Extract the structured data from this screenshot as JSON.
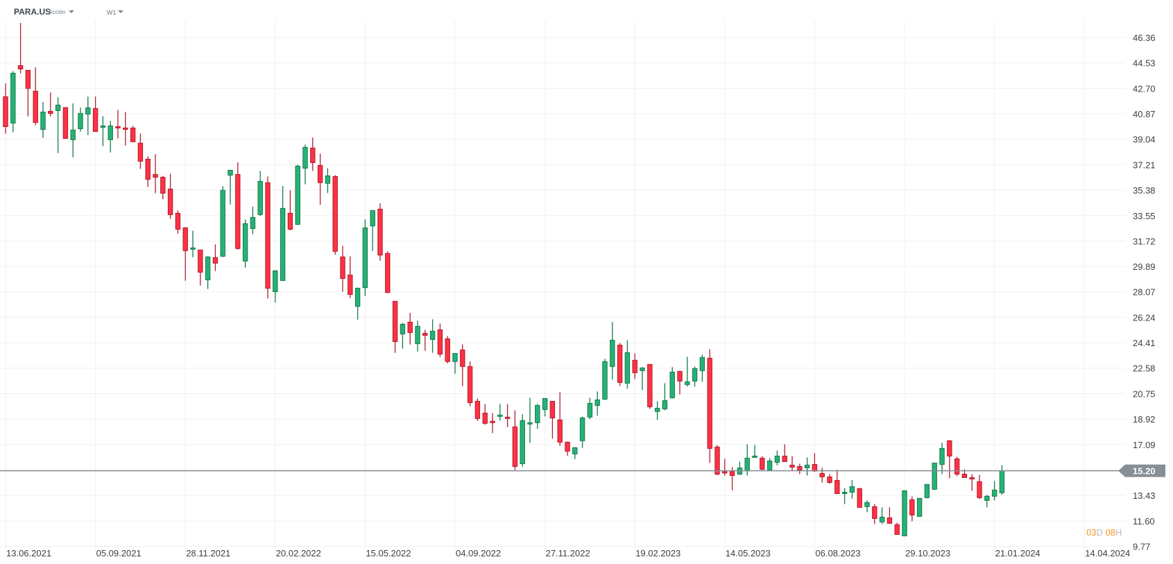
{
  "header": {
    "symbol": "PARA.US",
    "instrument_type": "Acción",
    "timeframe": "W1"
  },
  "current_price": {
    "value": 15.2,
    "label": "15.20",
    "color": "#868e96"
  },
  "countdown": {
    "days": "03",
    "days_unit": "D",
    "hours": "08",
    "hours_unit": "H"
  },
  "colors": {
    "up_fill": "#26b276",
    "up_border": "#157a4c",
    "down_fill": "#ff3145",
    "down_border": "#b01d2c",
    "grid": "#f0f0f0"
  },
  "chart_data": {
    "type": "candlestick",
    "title": "PARA.US W1",
    "ylim": [
      9.77,
      46.36
    ],
    "grid": true,
    "y_tick_labels": [
      "46.36",
      "44.53",
      "42.70",
      "40.87",
      "39.04",
      "37.21",
      "35.38",
      "33.55",
      "31.72",
      "29.89",
      "28.07",
      "26.24",
      "24.41",
      "22.58",
      "20.75",
      "18.92",
      "17.09",
      "13.43",
      "11.60",
      "9.77"
    ],
    "x_tick_labels": [
      "13.06.2021",
      "05.09.2021",
      "28.11.2021",
      "20.02.2022",
      "15.05.2022",
      "04.09.2022",
      "27.11.2022",
      "19.02.2023",
      "14.05.2023",
      "06.08.2023",
      "29.10.2023",
      "21.01.2024",
      "14.04.2024"
    ],
    "candle_fields": [
      "open",
      "high",
      "low",
      "close"
    ],
    "candles": [
      [
        42.1,
        43.06,
        39.44,
        39.95
      ],
      [
        40.2,
        43.94,
        39.54,
        43.79
      ],
      [
        44.34,
        47.4,
        43.78,
        44.09
      ],
      [
        44.0,
        44.0,
        40.68,
        42.7
      ],
      [
        42.5,
        44.21,
        40.04,
        40.25
      ],
      [
        39.74,
        41.72,
        39.14,
        41.0
      ],
      [
        41.05,
        42.41,
        40.68,
        40.9
      ],
      [
        41.1,
        42.06,
        38.04,
        41.5
      ],
      [
        41.32,
        41.32,
        39.1,
        39.1
      ],
      [
        39.01,
        41.62,
        37.74,
        39.7
      ],
      [
        39.8,
        41.32,
        39.59,
        40.9
      ],
      [
        40.85,
        42.11,
        39.34,
        41.3
      ],
      [
        41.25,
        42.11,
        39.6,
        39.6
      ],
      [
        39.9,
        40.7,
        38.54,
        40.0
      ],
      [
        39.01,
        40.35,
        38.09,
        40.0
      ],
      [
        39.95,
        41.15,
        39.1,
        39.85
      ],
      [
        39.85,
        41.0,
        38.59,
        39.75
      ],
      [
        39.85,
        40.0,
        38.86,
        38.86
      ],
      [
        38.76,
        39.45,
        36.91,
        37.46
      ],
      [
        37.61,
        37.81,
        35.61,
        36.16
      ],
      [
        36.51,
        37.96,
        35.16,
        36.31
      ],
      [
        36.31,
        36.41,
        34.72,
        35.16
      ],
      [
        35.46,
        36.56,
        33.32,
        33.62
      ],
      [
        33.72,
        33.92,
        32.26,
        32.57
      ],
      [
        32.67,
        32.72,
        28.87,
        31.03
      ],
      [
        31.13,
        32.47,
        30.56,
        31.23
      ],
      [
        31.08,
        31.08,
        28.52,
        29.48
      ],
      [
        28.93,
        30.63,
        28.27,
        30.58
      ],
      [
        30.53,
        31.48,
        29.56,
        30.13
      ],
      [
        30.63,
        35.67,
        30.56,
        35.37
      ],
      [
        36.46,
        36.81,
        34.35,
        36.81
      ],
      [
        36.51,
        37.38,
        31.11,
        31.18
      ],
      [
        30.28,
        33.27,
        29.81,
        32.97
      ],
      [
        32.62,
        34.19,
        32.22,
        33.42
      ],
      [
        33.62,
        36.76,
        33.52,
        36.01
      ],
      [
        35.92,
        36.36,
        27.6,
        28.33
      ],
      [
        28.08,
        29.63,
        27.3,
        29.58
      ],
      [
        28.88,
        35.67,
        28.88,
        34.07
      ],
      [
        33.72,
        35.37,
        32.49,
        32.57
      ],
      [
        32.92,
        37.21,
        32.87,
        37.11
      ],
      [
        36.96,
        38.66,
        35.8,
        38.46
      ],
      [
        38.41,
        39.16,
        36.76,
        37.36
      ],
      [
        37.16,
        38.01,
        34.32,
        35.92
      ],
      [
        35.87,
        36.96,
        35.17,
        36.41
      ],
      [
        36.36,
        36.46,
        30.73,
        30.98
      ],
      [
        30.58,
        31.38,
        28.08,
        29.03
      ],
      [
        29.28,
        30.63,
        27.62,
        27.88
      ],
      [
        27.02,
        28.38,
        26.07,
        28.33
      ],
      [
        28.37,
        33.29,
        27.77,
        32.67
      ],
      [
        32.81,
        33.92,
        31.01,
        33.92
      ],
      [
        34.02,
        34.43,
        30.31,
        30.71
      ],
      [
        30.83,
        30.98,
        27.97,
        28.02
      ],
      [
        27.39,
        27.39,
        23.68,
        24.49
      ],
      [
        25.04,
        25.84,
        23.98,
        25.74
      ],
      [
        25.89,
        26.55,
        24.28,
        25.14
      ],
      [
        24.34,
        25.99,
        23.78,
        25.59
      ],
      [
        25.09,
        25.34,
        23.83,
        24.94
      ],
      [
        24.64,
        26.09,
        23.68,
        25.24
      ],
      [
        25.34,
        25.79,
        23.38,
        23.59
      ],
      [
        24.69,
        24.89,
        22.93,
        23.06
      ],
      [
        23.06,
        23.64,
        22.18,
        23.64
      ],
      [
        23.89,
        24.29,
        21.28,
        22.7
      ],
      [
        22.7,
        23.06,
        19.84,
        20.1
      ],
      [
        20.2,
        20.4,
        18.79,
        18.96
      ],
      [
        19.35,
        20.0,
        18.51,
        18.61
      ],
      [
        18.76,
        19.35,
        17.91,
        18.66
      ],
      [
        19.11,
        20.0,
        18.81,
        19.21
      ],
      [
        19.06,
        20.0,
        18.34,
        18.96
      ],
      [
        18.36,
        19.55,
        15.26,
        15.51
      ],
      [
        15.71,
        19.26,
        15.49,
        18.81
      ],
      [
        18.56,
        20.45,
        17.21,
        18.66
      ],
      [
        18.66,
        20.0,
        18.21,
        19.9
      ],
      [
        19.6,
        20.4,
        19.11,
        20.4
      ],
      [
        20.2,
        20.2,
        17.51,
        19.0
      ],
      [
        18.86,
        20.85,
        16.99,
        17.26
      ],
      [
        17.26,
        17.3,
        16.29,
        16.61
      ],
      [
        16.41,
        16.91,
        16.04,
        16.86
      ],
      [
        17.36,
        19.1,
        16.84,
        19.0
      ],
      [
        19.06,
        20.45,
        18.91,
        20.05
      ],
      [
        19.9,
        20.9,
        19.16,
        20.3
      ],
      [
        20.35,
        23.25,
        20.3,
        23.05
      ],
      [
        22.7,
        25.91,
        21.75,
        24.59
      ],
      [
        24.24,
        24.39,
        21.3,
        21.55
      ],
      [
        21.5,
        24.59,
        21.1,
        23.69
      ],
      [
        23.15,
        23.64,
        21.8,
        22.25
      ],
      [
        22.4,
        22.65,
        21.0,
        22.6
      ],
      [
        22.85,
        22.85,
        19.65,
        19.8
      ],
      [
        19.46,
        20.2,
        18.86,
        19.7
      ],
      [
        19.65,
        21.5,
        19.55,
        20.25
      ],
      [
        20.45,
        22.65,
        20.4,
        22.3
      ],
      [
        22.35,
        22.4,
        20.69,
        21.65
      ],
      [
        21.4,
        23.4,
        21.25,
        21.6
      ],
      [
        21.65,
        22.7,
        21.25,
        22.55
      ],
      [
        22.4,
        23.55,
        21.6,
        23.35
      ],
      [
        23.3,
        23.94,
        15.76,
        16.81
      ],
      [
        16.91,
        17.06,
        14.88,
        14.96
      ],
      [
        15.13,
        16.06,
        14.85,
        15.04
      ],
      [
        15.13,
        15.46,
        13.8,
        14.86
      ],
      [
        14.96,
        15.86,
        14.91,
        15.41
      ],
      [
        15.19,
        17.11,
        14.86,
        16.11
      ],
      [
        16.16,
        17.06,
        16.16,
        16.26
      ],
      [
        16.11,
        16.26,
        15.24,
        15.31
      ],
      [
        15.26,
        16.11,
        15.26,
        15.91
      ],
      [
        15.81,
        16.66,
        15.59,
        16.26
      ],
      [
        16.26,
        17.11,
        15.86,
        15.86
      ],
      [
        15.61,
        16.26,
        15.19,
        15.46
      ],
      [
        15.51,
        15.71,
        14.96,
        15.26
      ],
      [
        15.41,
        16.16,
        14.86,
        15.61
      ],
      [
        15.66,
        16.46,
        15.11,
        15.18
      ],
      [
        15.01,
        15.41,
        14.35,
        14.76
      ],
      [
        14.76,
        14.96,
        14.26,
        14.36
      ],
      [
        14.51,
        15.26,
        13.56,
        13.56
      ],
      [
        13.56,
        13.96,
        12.8,
        13.66
      ],
      [
        13.66,
        14.53,
        13.2,
        14.06
      ],
      [
        13.92,
        13.97,
        12.57,
        12.57
      ],
      [
        12.62,
        13.07,
        12.22,
        12.92
      ],
      [
        12.62,
        12.82,
        11.37,
        11.77
      ],
      [
        11.52,
        12.57,
        11.37,
        11.87
      ],
      [
        11.82,
        12.57,
        11.42,
        11.42
      ],
      [
        11.32,
        11.47,
        10.62,
        10.62
      ],
      [
        10.52,
        13.77,
        10.52,
        13.77
      ],
      [
        13.12,
        13.37,
        11.57,
        12.02
      ],
      [
        11.92,
        13.22,
        11.92,
        13.22
      ],
      [
        13.27,
        14.22,
        13.22,
        14.22
      ],
      [
        13.87,
        15.76,
        13.82,
        15.76
      ],
      [
        15.66,
        17.21,
        14.96,
        16.81
      ],
      [
        17.36,
        17.41,
        14.66,
        16.26
      ],
      [
        16.06,
        16.21,
        14.81,
        14.96
      ],
      [
        14.96,
        15.31,
        14.71,
        14.71
      ],
      [
        14.71,
        14.96,
        13.77,
        14.61
      ],
      [
        14.42,
        14.91,
        13.17,
        13.27
      ],
      [
        13.07,
        13.47,
        12.57,
        13.37
      ],
      [
        13.37,
        14.47,
        13.07,
        13.82
      ],
      [
        13.62,
        15.61,
        13.47,
        15.2
      ]
    ]
  }
}
